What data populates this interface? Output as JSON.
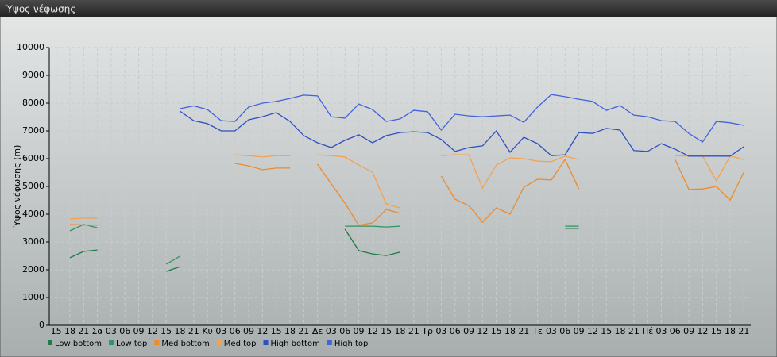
{
  "chart_data": {
    "type": "line",
    "title": "Ύψος νέφωσης",
    "y_label": "Ύψος νέφωσης (m)",
    "categories": [
      "15",
      "18",
      "21",
      "Σα",
      "03",
      "06",
      "09",
      "12",
      "15",
      "18",
      "21",
      "Κυ",
      "03",
      "06",
      "09",
      "12",
      "15",
      "18",
      "21",
      "Δε",
      "03",
      "06",
      "09",
      "12",
      "15",
      "18",
      "21",
      "Τρ",
      "03",
      "06",
      "09",
      "12",
      "15",
      "18",
      "21",
      "Τε",
      "03",
      "06",
      "09",
      "12",
      "15",
      "18",
      "21",
      "Πέ",
      "03",
      "06",
      "09",
      "12",
      "15",
      "18",
      "21"
    ],
    "ylim": [
      0,
      10000
    ],
    "yticks": [
      0,
      1000,
      2000,
      3000,
      4000,
      5000,
      6000,
      7000,
      8000,
      9000,
      10000
    ],
    "grid": true,
    "series": [
      {
        "name": "Low bottom",
        "color": "#1f7a4c",
        "values": [
          null,
          2430,
          2660,
          2710,
          null,
          null,
          null,
          null,
          1940,
          2110,
          null,
          null,
          null,
          null,
          null,
          null,
          null,
          null,
          null,
          null,
          null,
          3460,
          2690,
          2570,
          2510,
          2630,
          null,
          null,
          null,
          null,
          null,
          null,
          null,
          null,
          null,
          null,
          null,
          3490,
          3490,
          null,
          null,
          null,
          null,
          null,
          null,
          null,
          null,
          null,
          null,
          null,
          null
        ]
      },
      {
        "name": "Low top",
        "color": "#2f9562",
        "values": [
          null,
          3400,
          3630,
          3510,
          null,
          null,
          null,
          null,
          2200,
          2490,
          null,
          null,
          null,
          null,
          null,
          null,
          null,
          null,
          null,
          null,
          null,
          3570,
          3570,
          3570,
          3540,
          3570,
          null,
          null,
          null,
          null,
          null,
          null,
          null,
          null,
          null,
          null,
          null,
          3570,
          3570,
          null,
          null,
          null,
          null,
          null,
          null,
          null,
          null,
          null,
          null,
          null,
          null
        ]
      },
      {
        "name": "Med bottom",
        "color": "#ee8a2a",
        "values": [
          null,
          3630,
          3610,
          3600,
          null,
          null,
          null,
          null,
          null,
          null,
          null,
          null,
          null,
          5830,
          5740,
          5600,
          5660,
          5660,
          null,
          5800,
          5090,
          4400,
          3600,
          3690,
          4170,
          4030,
          null,
          null,
          5370,
          4540,
          4310,
          3710,
          4230,
          4000,
          4970,
          5260,
          5230,
          5970,
          4910,
          null,
          null,
          null,
          null,
          null,
          null,
          5970,
          4890,
          4910,
          5000,
          4510,
          5510
        ]
      },
      {
        "name": "Med top",
        "color": "#f4a24e",
        "values": [
          null,
          3830,
          3860,
          3860,
          null,
          null,
          null,
          null,
          null,
          null,
          null,
          null,
          null,
          6140,
          6110,
          6060,
          6110,
          6110,
          null,
          6140,
          6110,
          6060,
          5770,
          5510,
          4370,
          4230,
          null,
          null,
          6110,
          6140,
          6140,
          4940,
          5770,
          6030,
          6000,
          5910,
          5890,
          6090,
          5970,
          null,
          null,
          null,
          null,
          null,
          null,
          6110,
          6090,
          6090,
          5200,
          6090,
          5970
        ]
      },
      {
        "name": "High bottom",
        "color": "#2f4fc6",
        "values": [
          null,
          null,
          null,
          null,
          null,
          null,
          null,
          null,
          null,
          7710,
          7370,
          7260,
          7000,
          7000,
          7400,
          7510,
          7660,
          7340,
          6830,
          6570,
          6400,
          6660,
          6860,
          6570,
          6830,
          6940,
          6970,
          6940,
          6690,
          6260,
          6400,
          6460,
          7000,
          6230,
          6770,
          6540,
          6110,
          6140,
          6940,
          6910,
          7090,
          7030,
          6290,
          6260,
          6540,
          6340,
          6090,
          6090,
          6090,
          6090,
          6430
        ]
      },
      {
        "name": "High top",
        "color": "#4262de",
        "values": [
          null,
          null,
          null,
          null,
          null,
          null,
          null,
          null,
          null,
          7800,
          7900,
          7770,
          7370,
          7340,
          7860,
          8000,
          8060,
          8170,
          8290,
          8260,
          7510,
          7460,
          7970,
          7770,
          7340,
          7430,
          7740,
          7690,
          7030,
          7600,
          7540,
          7510,
          7540,
          7570,
          7310,
          7860,
          8310,
          8230,
          8140,
          8060,
          7740,
          7910,
          7570,
          7510,
          7370,
          7340,
          6910,
          6600,
          7340,
          7290,
          7200
        ]
      }
    ]
  }
}
